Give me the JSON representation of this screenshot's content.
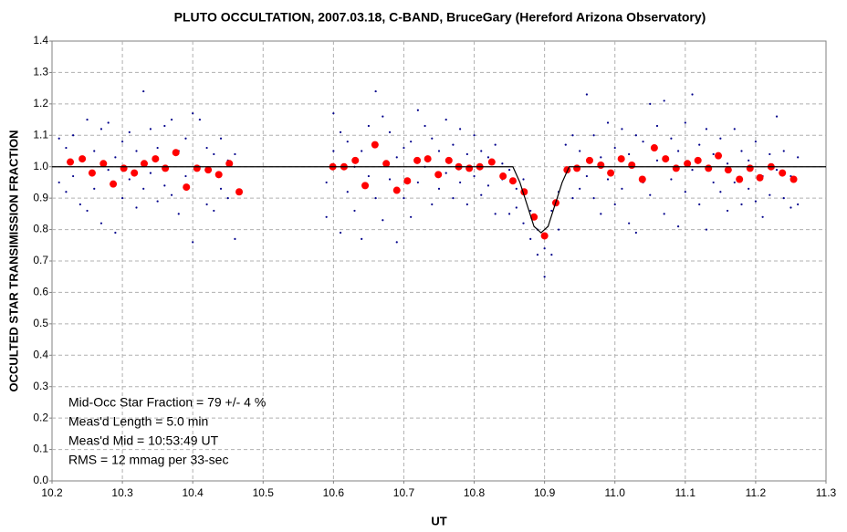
{
  "chart_data": {
    "type": "scatter",
    "title": "PLUTO OCCULTATION, 2007.03.18, C-BAND, BruceGary (Hereford Arizona Observatory)",
    "x_label": "UT",
    "y_label": "OCCULTED STAR TRANSIMISSION FRACTION",
    "annotations": [
      "Mid-Occ Star Fraction = 79 +/- 4 %",
      "Meas'd Length = 5.0 min",
      "Meas'd Mid = 10:53:49 UT",
      "RMS = 12 mmag per 33-sec"
    ],
    "xlim": [
      10.2,
      11.3
    ],
    "xticks": [
      10.2,
      10.3,
      10.4,
      10.5,
      10.6,
      10.7,
      10.8,
      10.9,
      {
        "value": 11,
        "label": "11.0"
      },
      11.1,
      11.2,
      11.3
    ],
    "ylim": [
      0,
      1.4
    ],
    "yticks": [
      {
        "value": 0,
        "label": "0.0"
      },
      0.1,
      0.2,
      0.3,
      0.4,
      0.5,
      0.6,
      0.7,
      0.8,
      0.9,
      {
        "value": 1,
        "label": "1.0"
      },
      1.1,
      1.2,
      1.3,
      1.4
    ],
    "grid": true,
    "series": [
      {
        "color": "#00008b",
        "style": "dot",
        "x": [
          10.21,
          10.21,
          10.22,
          10.22,
          10.23,
          10.23,
          10.24,
          10.24,
          10.25,
          10.25,
          10.26,
          10.26,
          10.27,
          10.27,
          10.28,
          10.28,
          10.29,
          10.29,
          10.3,
          10.3,
          10.31,
          10.31,
          10.32,
          10.32,
          10.33,
          10.33,
          10.34,
          10.34,
          10.35,
          10.35,
          10.36,
          10.36,
          10.37,
          10.37,
          10.38,
          10.38,
          10.39,
          10.39,
          10.4,
          10.4,
          10.41,
          10.41,
          10.42,
          10.42,
          10.43,
          10.43,
          10.44,
          10.44,
          10.45,
          10.45,
          10.46,
          10.46,
          10.59,
          10.59,
          10.6,
          10.6,
          10.61,
          10.61,
          10.62,
          10.62,
          10.63,
          10.63,
          10.64,
          10.64,
          10.65,
          10.65,
          10.66,
          10.66,
          10.67,
          10.67,
          10.68,
          10.68,
          10.69,
          10.69,
          10.7,
          10.7,
          10.71,
          10.71,
          10.72,
          10.72,
          10.73,
          10.73,
          10.74,
          10.74,
          10.75,
          10.75,
          10.76,
          10.76,
          10.77,
          10.77,
          10.78,
          10.78,
          10.79,
          10.79,
          10.8,
          10.8,
          10.81,
          10.81,
          10.82,
          10.82,
          10.83,
          10.83,
          10.84,
          10.84,
          10.85,
          10.85,
          10.86,
          10.86,
          10.87,
          10.87,
          10.88,
          10.88,
          10.89,
          10.89,
          10.9,
          10.9,
          10.91,
          10.91,
          10.92,
          10.92,
          10.93,
          10.93,
          10.94,
          10.94,
          10.95,
          10.95,
          10.96,
          10.96,
          10.97,
          10.97,
          10.98,
          10.98,
          10.99,
          10.99,
          11.0,
          11.0,
          11.01,
          11.01,
          11.02,
          11.02,
          11.03,
          11.03,
          11.04,
          11.04,
          11.05,
          11.05,
          11.06,
          11.06,
          11.07,
          11.07,
          11.08,
          11.08,
          11.09,
          11.09,
          11.1,
          11.1,
          11.11,
          11.11,
          11.12,
          11.12,
          11.13,
          11.13,
          11.14,
          11.14,
          11.15,
          11.15,
          11.16,
          11.16,
          11.17,
          11.17,
          11.18,
          11.18,
          11.19,
          11.19,
          11.2,
          11.2,
          11.21,
          11.21,
          11.22,
          11.22,
          11.23,
          11.23,
          11.24,
          11.24,
          11.25,
          11.25,
          11.26,
          11.26
        ],
        "values": [
          1.09,
          0.95,
          1.06,
          0.92,
          1.1,
          0.97,
          1.02,
          0.88,
          1.15,
          0.86,
          1.05,
          0.93,
          1.12,
          0.82,
          0.99,
          1.14,
          0.79,
          1.03,
          1.08,
          0.9,
          1.11,
          0.96,
          0.87,
          1.05,
          1.24,
          0.93,
          1.12,
          0.98,
          0.89,
          1.06,
          1.13,
          0.94,
          1.15,
          0.91,
          1.05,
          0.85,
          1.09,
          0.97,
          0.76,
          1.17,
          1.15,
          1.0,
          0.88,
          1.06,
          1.04,
          0.86,
          0.93,
          1.09,
          1.02,
          0.9,
          0.77,
          1.04,
          0.84,
          0.95,
          1.17,
          1.05,
          0.79,
          1.11,
          1.08,
          0.92,
          1.0,
          0.86,
          0.77,
          1.05,
          1.13,
          0.97,
          1.24,
          0.9,
          1.16,
          0.83,
          0.96,
          1.11,
          0.76,
          1.03,
          0.9,
          1.06,
          1.08,
          0.84,
          1.18,
          0.95,
          1.13,
          1.0,
          0.88,
          1.09,
          1.05,
          0.93,
          1.15,
          0.98,
          0.9,
          1.07,
          1.12,
          0.95,
          1.04,
          0.88,
          1.1,
          0.97,
          0.91,
          1.05,
          1.03,
          0.94,
          0.85,
          1.07,
          0.96,
          1.01,
          0.85,
          0.99,
          0.93,
          0.87,
          0.82,
          0.96,
          0.77,
          0.86,
          0.72,
          0.8,
          0.65,
          0.74,
          0.72,
          0.86,
          0.8,
          0.92,
          0.99,
          1.07,
          0.9,
          1.1,
          1.05,
          0.93,
          1.23,
          0.97,
          1.1,
          0.9,
          0.85,
          1.03,
          1.14,
          0.96,
          0.88,
          1.06,
          1.12,
          0.93,
          0.82,
          1.04,
          1.1,
          0.79,
          0.95,
          1.08,
          1.2,
          0.91,
          1.13,
          1.02,
          1.21,
          0.85,
          0.96,
          1.09,
          0.81,
          1.05,
          1.14,
          0.92,
          1.23,
          0.99,
          0.88,
          1.07,
          1.12,
          0.8,
          0.95,
          1.04,
          1.09,
          0.92,
          0.86,
          1.01,
          1.12,
          0.95,
          0.88,
          1.05,
          1.02,
          0.93,
          1.08,
          0.89,
          0.84,
          0.97,
          1.04,
          0.91,
          1.16,
          0.99,
          0.9,
          1.05,
          0.87,
          0.97,
          1.03,
          0.88
        ]
      },
      {
        "color": "#ff0000",
        "style": "big",
        "x": [
          10.226,
          10.243,
          10.257,
          10.273,
          10.287,
          10.302,
          10.317,
          10.331,
          10.347,
          10.361,
          10.376,
          10.391,
          10.406,
          10.422,
          10.437,
          10.452,
          10.466,
          10.599,
          10.615,
          10.631,
          10.645,
          10.659,
          10.675,
          10.69,
          10.705,
          10.719,
          10.734,
          10.749,
          10.764,
          10.778,
          10.793,
          10.808,
          10.825,
          10.841,
          10.855,
          10.871,
          10.885,
          10.9,
          10.916,
          10.932,
          10.946,
          10.964,
          10.98,
          10.994,
          11.009,
          11.024,
          11.039,
          11.056,
          11.072,
          11.087,
          11.103,
          11.118,
          11.133,
          11.147,
          11.161,
          11.177,
          11.192,
          11.206,
          11.222,
          11.238,
          11.254
        ],
        "values": [
          1.015,
          1.025,
          0.98,
          1.01,
          0.945,
          0.995,
          0.98,
          1.01,
          1.025,
          0.995,
          1.045,
          0.935,
          0.995,
          0.99,
          0.975,
          1.01,
          0.92,
          1.0,
          1.0,
          1.02,
          0.94,
          1.07,
          1.01,
          0.925,
          0.955,
          1.02,
          1.025,
          0.975,
          1.02,
          1.0,
          0.995,
          1.0,
          1.015,
          0.97,
          0.955,
          0.92,
          0.84,
          0.78,
          0.885,
          0.99,
          0.995,
          1.02,
          1.005,
          0.98,
          1.025,
          1.005,
          0.96,
          1.06,
          1.025,
          0.995,
          1.01,
          1.02,
          0.995,
          1.035,
          0.99,
          0.96,
          0.995,
          0.965,
          1.0,
          0.98,
          0.96
        ]
      },
      {
        "color": "#000000",
        "style": "line",
        "x": [
          10.2,
          10.855,
          10.865,
          10.875,
          10.885,
          10.895,
          10.905,
          10.915,
          10.925,
          10.935,
          11.3
        ],
        "values": [
          1.0,
          1.0,
          0.95,
          0.88,
          0.81,
          0.79,
          0.81,
          0.88,
          0.95,
          1.0,
          1.0
        ]
      }
    ]
  }
}
